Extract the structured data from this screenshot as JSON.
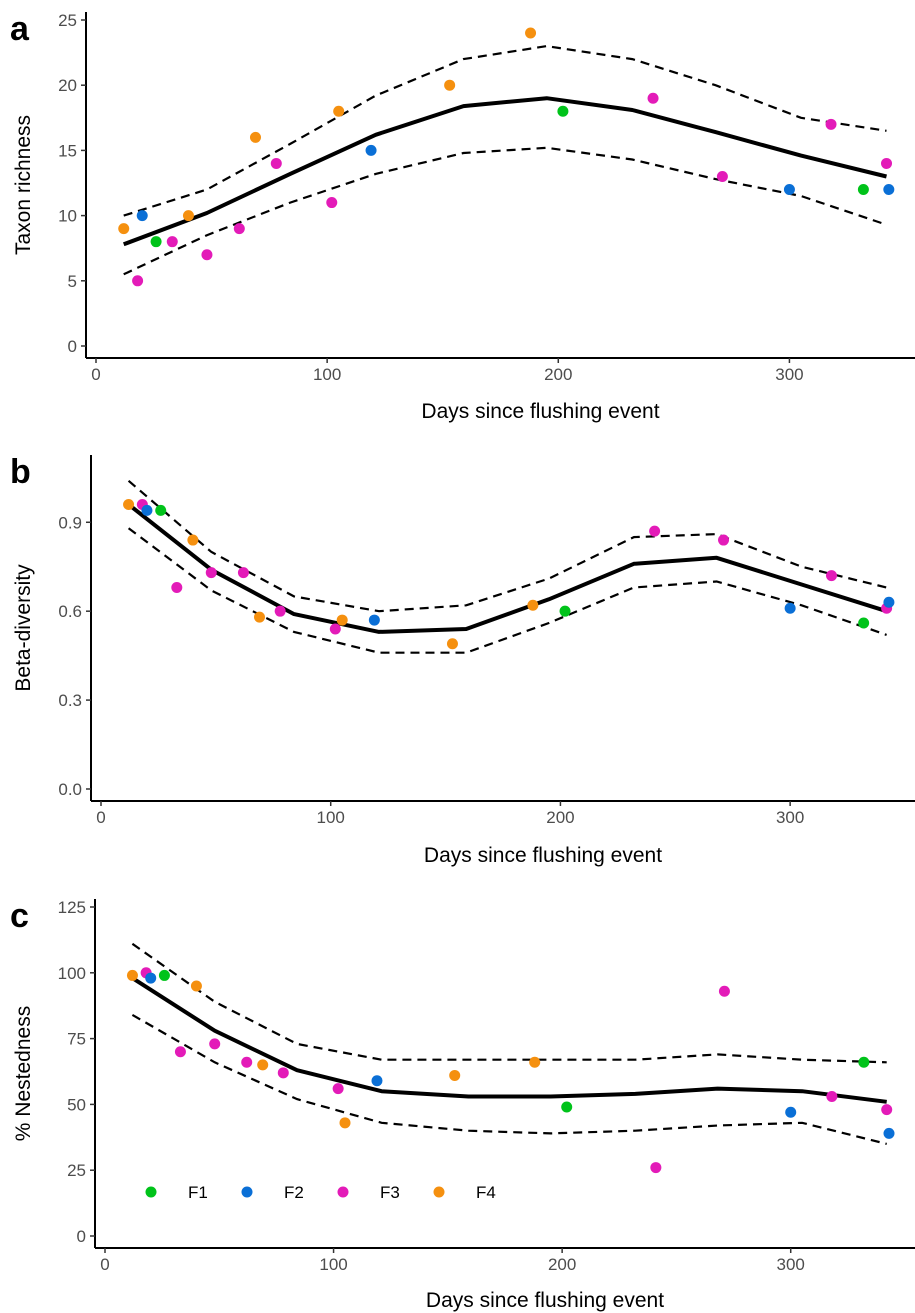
{
  "figure": {
    "colors": {
      "F1": "#00c31a",
      "F2": "#0a6fd6",
      "F3": "#e31bb8",
      "F4": "#f5900f"
    },
    "legend": [
      {
        "label": "F1",
        "color": "#00c31a"
      },
      {
        "label": "F2",
        "color": "#0a6fd6"
      },
      {
        "label": "F3",
        "color": "#e31bb8"
      },
      {
        "label": "F4",
        "color": "#f5900f"
      }
    ]
  },
  "chart_data": [
    {
      "panel": "a",
      "type": "scatter",
      "xlabel": "Days since flushing event",
      "ylabel": "Taxon richness",
      "xlim": [
        0,
        350
      ],
      "ylim": [
        0,
        25
      ],
      "xticks": [
        0,
        100,
        200,
        300
      ],
      "yticks": [
        0,
        5,
        10,
        15,
        20,
        25
      ],
      "grid": false,
      "points": [
        {
          "x": 12,
          "y": 9,
          "group": "F4"
        },
        {
          "x": 18,
          "y": 5,
          "group": "F3"
        },
        {
          "x": 20,
          "y": 10,
          "group": "F2"
        },
        {
          "x": 26,
          "y": 8,
          "group": "F1"
        },
        {
          "x": 33,
          "y": 8,
          "group": "F3"
        },
        {
          "x": 40,
          "y": 10,
          "group": "F4"
        },
        {
          "x": 48,
          "y": 7,
          "group": "F3"
        },
        {
          "x": 62,
          "y": 9,
          "group": "F3"
        },
        {
          "x": 69,
          "y": 16,
          "group": "F4"
        },
        {
          "x": 78,
          "y": 14,
          "group": "F3"
        },
        {
          "x": 102,
          "y": 11,
          "group": "F3"
        },
        {
          "x": 105,
          "y": 18,
          "group": "F4"
        },
        {
          "x": 119,
          "y": 15,
          "group": "F2"
        },
        {
          "x": 153,
          "y": 20,
          "group": "F4"
        },
        {
          "x": 188,
          "y": 24,
          "group": "F4"
        },
        {
          "x": 202,
          "y": 18,
          "group": "F1"
        },
        {
          "x": 241,
          "y": 19,
          "group": "F3"
        },
        {
          "x": 271,
          "y": 13,
          "group": "F3"
        },
        {
          "x": 300,
          "y": 12,
          "group": "F2"
        },
        {
          "x": 318,
          "y": 17,
          "group": "F3"
        },
        {
          "x": 332,
          "y": 12,
          "group": "F1"
        },
        {
          "x": 342,
          "y": 14,
          "group": "F3"
        },
        {
          "x": 343,
          "y": 12,
          "group": "F2"
        }
      ],
      "fit": {
        "x": [
          12,
          48,
          84,
          121,
          159,
          195,
          232,
          268,
          305,
          342
        ],
        "y": [
          7.8,
          10.2,
          13.2,
          16.2,
          18.4,
          19.0,
          18.1,
          16.4,
          14.6,
          13.0
        ]
      },
      "upper": {
        "x": [
          12,
          48,
          84,
          121,
          159,
          195,
          232,
          268,
          305,
          342
        ],
        "y": [
          10.0,
          12.0,
          15.5,
          19.2,
          22.0,
          23.0,
          22.0,
          20.0,
          17.5,
          16.5
        ]
      },
      "lower": {
        "x": [
          12,
          48,
          84,
          121,
          159,
          195,
          232,
          268,
          305,
          342
        ],
        "y": [
          5.5,
          8.5,
          11.0,
          13.2,
          14.8,
          15.2,
          14.3,
          12.8,
          11.5,
          9.3
        ]
      }
    },
    {
      "panel": "b",
      "type": "scatter",
      "xlabel": "Days since flushing event",
      "ylabel": "Beta-diversity",
      "xlim": [
        0,
        350
      ],
      "ylim": [
        0.0,
        1.1
      ],
      "xticks": [
        0,
        100,
        200,
        300
      ],
      "yticks": [
        0.0,
        0.3,
        0.6,
        0.9
      ],
      "ytick_labels": [
        "0.0",
        "0.3",
        "0.6",
        "0.9"
      ],
      "grid": false,
      "points": [
        {
          "x": 12,
          "y": 0.96,
          "group": "F4"
        },
        {
          "x": 18,
          "y": 0.96,
          "group": "F3"
        },
        {
          "x": 20,
          "y": 0.94,
          "group": "F2"
        },
        {
          "x": 26,
          "y": 0.94,
          "group": "F1"
        },
        {
          "x": 33,
          "y": 0.68,
          "group": "F3"
        },
        {
          "x": 40,
          "y": 0.84,
          "group": "F4"
        },
        {
          "x": 48,
          "y": 0.73,
          "group": "F3"
        },
        {
          "x": 62,
          "y": 0.73,
          "group": "F3"
        },
        {
          "x": 69,
          "y": 0.58,
          "group": "F4"
        },
        {
          "x": 78,
          "y": 0.6,
          "group": "F3"
        },
        {
          "x": 102,
          "y": 0.54,
          "group": "F3"
        },
        {
          "x": 105,
          "y": 0.57,
          "group": "F4"
        },
        {
          "x": 119,
          "y": 0.57,
          "group": "F2"
        },
        {
          "x": 153,
          "y": 0.49,
          "group": "F4"
        },
        {
          "x": 188,
          "y": 0.62,
          "group": "F4"
        },
        {
          "x": 202,
          "y": 0.6,
          "group": "F1"
        },
        {
          "x": 241,
          "y": 0.87,
          "group": "F3"
        },
        {
          "x": 271,
          "y": 0.84,
          "group": "F3"
        },
        {
          "x": 300,
          "y": 0.61,
          "group": "F2"
        },
        {
          "x": 318,
          "y": 0.72,
          "group": "F3"
        },
        {
          "x": 332,
          "y": 0.56,
          "group": "F1"
        },
        {
          "x": 342,
          "y": 0.61,
          "group": "F3"
        },
        {
          "x": 343,
          "y": 0.63,
          "group": "F2"
        }
      ],
      "fit": {
        "x": [
          12,
          48,
          84,
          121,
          159,
          195,
          232,
          268,
          305,
          342
        ],
        "y": [
          0.96,
          0.74,
          0.59,
          0.53,
          0.54,
          0.64,
          0.76,
          0.78,
          0.69,
          0.6
        ]
      },
      "upper": {
        "x": [
          12,
          48,
          84,
          121,
          159,
          195,
          232,
          268,
          305,
          342
        ],
        "y": [
          1.04,
          0.8,
          0.65,
          0.6,
          0.62,
          0.71,
          0.85,
          0.86,
          0.75,
          0.68
        ]
      },
      "lower": {
        "x": [
          12,
          48,
          84,
          121,
          159,
          195,
          232,
          268,
          305,
          342
        ],
        "y": [
          0.88,
          0.67,
          0.53,
          0.46,
          0.46,
          0.56,
          0.68,
          0.7,
          0.62,
          0.52
        ]
      }
    },
    {
      "panel": "c",
      "type": "scatter",
      "xlabel": "Days since flushing event",
      "ylabel": "% Nestedness",
      "xlim": [
        0,
        350
      ],
      "ylim": [
        0,
        125
      ],
      "xticks": [
        0,
        100,
        200,
        300
      ],
      "yticks": [
        0,
        25,
        50,
        75,
        100,
        125
      ],
      "grid": false,
      "legend_position": "bottom-left",
      "points": [
        {
          "x": 12,
          "y": 99,
          "group": "F4"
        },
        {
          "x": 18,
          "y": 100,
          "group": "F3"
        },
        {
          "x": 20,
          "y": 98,
          "group": "F2"
        },
        {
          "x": 26,
          "y": 99,
          "group": "F1"
        },
        {
          "x": 33,
          "y": 70,
          "group": "F3"
        },
        {
          "x": 40,
          "y": 95,
          "group": "F4"
        },
        {
          "x": 48,
          "y": 73,
          "group": "F3"
        },
        {
          "x": 62,
          "y": 66,
          "group": "F3"
        },
        {
          "x": 69,
          "y": 65,
          "group": "F4"
        },
        {
          "x": 78,
          "y": 62,
          "group": "F3"
        },
        {
          "x": 102,
          "y": 56,
          "group": "F3"
        },
        {
          "x": 105,
          "y": 43,
          "group": "F4"
        },
        {
          "x": 119,
          "y": 59,
          "group": "F2"
        },
        {
          "x": 153,
          "y": 61,
          "group": "F4"
        },
        {
          "x": 188,
          "y": 66,
          "group": "F4"
        },
        {
          "x": 202,
          "y": 49,
          "group": "F1"
        },
        {
          "x": 241,
          "y": 26,
          "group": "F3"
        },
        {
          "x": 271,
          "y": 93,
          "group": "F3"
        },
        {
          "x": 300,
          "y": 47,
          "group": "F2"
        },
        {
          "x": 318,
          "y": 53,
          "group": "F3"
        },
        {
          "x": 332,
          "y": 66,
          "group": "F1"
        },
        {
          "x": 342,
          "y": 48,
          "group": "F3"
        },
        {
          "x": 343,
          "y": 39,
          "group": "F2"
        }
      ],
      "fit": {
        "x": [
          12,
          48,
          84,
          121,
          159,
          195,
          232,
          268,
          305,
          342
        ],
        "y": [
          98,
          78,
          63,
          55,
          53,
          53,
          54,
          56,
          55,
          51
        ]
      },
      "upper": {
        "x": [
          12,
          48,
          84,
          121,
          159,
          195,
          232,
          268,
          305,
          342
        ],
        "y": [
          111,
          89,
          73,
          67,
          67,
          67,
          67,
          69,
          67,
          66
        ]
      },
      "lower": {
        "x": [
          12,
          48,
          84,
          121,
          159,
          195,
          232,
          268,
          305,
          342
        ],
        "y": [
          84,
          66,
          52,
          43,
          40,
          39,
          40,
          42,
          43,
          35
        ]
      }
    }
  ]
}
